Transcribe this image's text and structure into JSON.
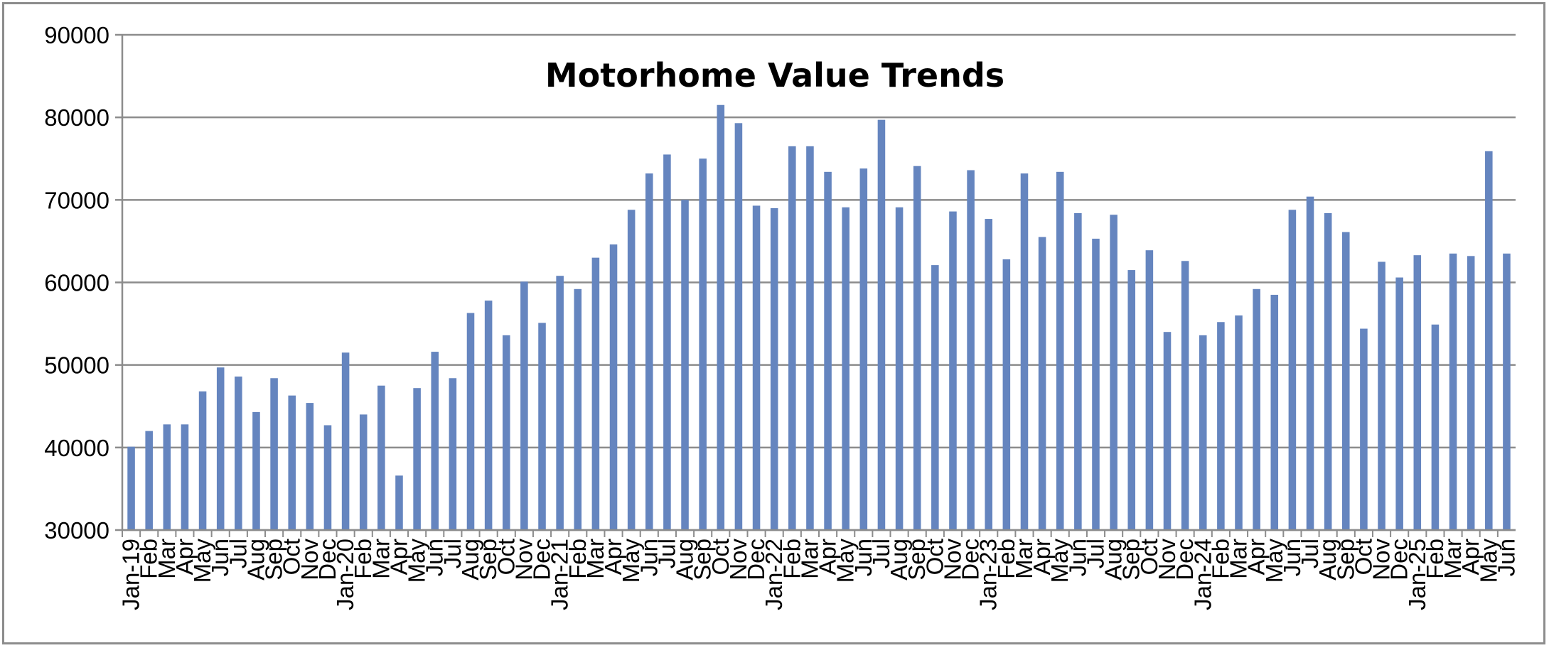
{
  "chart_data": {
    "type": "bar",
    "title": "Motorhome Value Trends",
    "xlabel": "",
    "ylabel": "",
    "ylim": [
      30000,
      90000
    ],
    "yticks": [
      30000,
      40000,
      50000,
      60000,
      70000,
      80000,
      90000
    ],
    "grid": true,
    "legend": "none",
    "bar_color": "#6585BF",
    "categories": [
      "Jan-19",
      "Feb",
      "Mar",
      "Apr",
      "May",
      "Jun",
      "Jul",
      "Aug",
      "Sep",
      "Oct",
      "Nov",
      "Dec",
      "Jan-20",
      "Feb",
      "Mar",
      "Apr",
      "May",
      "Jun",
      "Jul",
      "Aug",
      "Sep",
      "Oct",
      "Nov",
      "Dec",
      "Jan-21",
      "Feb",
      "Mar",
      "Apr",
      "May",
      "Jun",
      "Jul",
      "Aug",
      "Sep",
      "Oct",
      "Nov",
      "Dec",
      "Jan-22",
      "Feb",
      "Mar",
      "Apr",
      "May",
      "Jun",
      "Jul",
      "Aug",
      "Sep",
      "Oct",
      "Nov",
      "Dec",
      "Jan-23",
      "Feb",
      "Mar",
      "Apr",
      "May",
      "Jun",
      "Jul",
      "Aug",
      "Sep",
      "Oct",
      "Nov",
      "Dec",
      "Jan-24",
      "Feb",
      "Mar",
      "Apr",
      "May",
      "Jun",
      "Jul",
      "Aug",
      "Sep",
      "Oct",
      "Nov",
      "Dec",
      "Jan-25",
      "Feb",
      "Mar",
      "Apr",
      "May",
      "Jun"
    ],
    "values": [
      40100,
      42000,
      42800,
      42800,
      46800,
      49700,
      48600,
      44300,
      48400,
      46300,
      45400,
      42700,
      51500,
      44000,
      47500,
      36600,
      47200,
      51600,
      48400,
      56300,
      57800,
      53600,
      60100,
      55100,
      60800,
      59200,
      63000,
      64600,
      68800,
      73200,
      75500,
      70000,
      75000,
      81500,
      79300,
      69300,
      69000,
      76500,
      76500,
      73400,
      69100,
      73800,
      79700,
      69100,
      74100,
      62100,
      68600,
      73600,
      67700,
      62800,
      73200,
      65500,
      73400,
      68400,
      65300,
      68200,
      61500,
      63900,
      54000,
      62600,
      53600,
      55200,
      56000,
      59200,
      58500,
      68800,
      70400,
      68400,
      66100,
      54400,
      62500,
      60600,
      63300,
      54900,
      63500,
      63200,
      75900,
      63500
    ]
  }
}
